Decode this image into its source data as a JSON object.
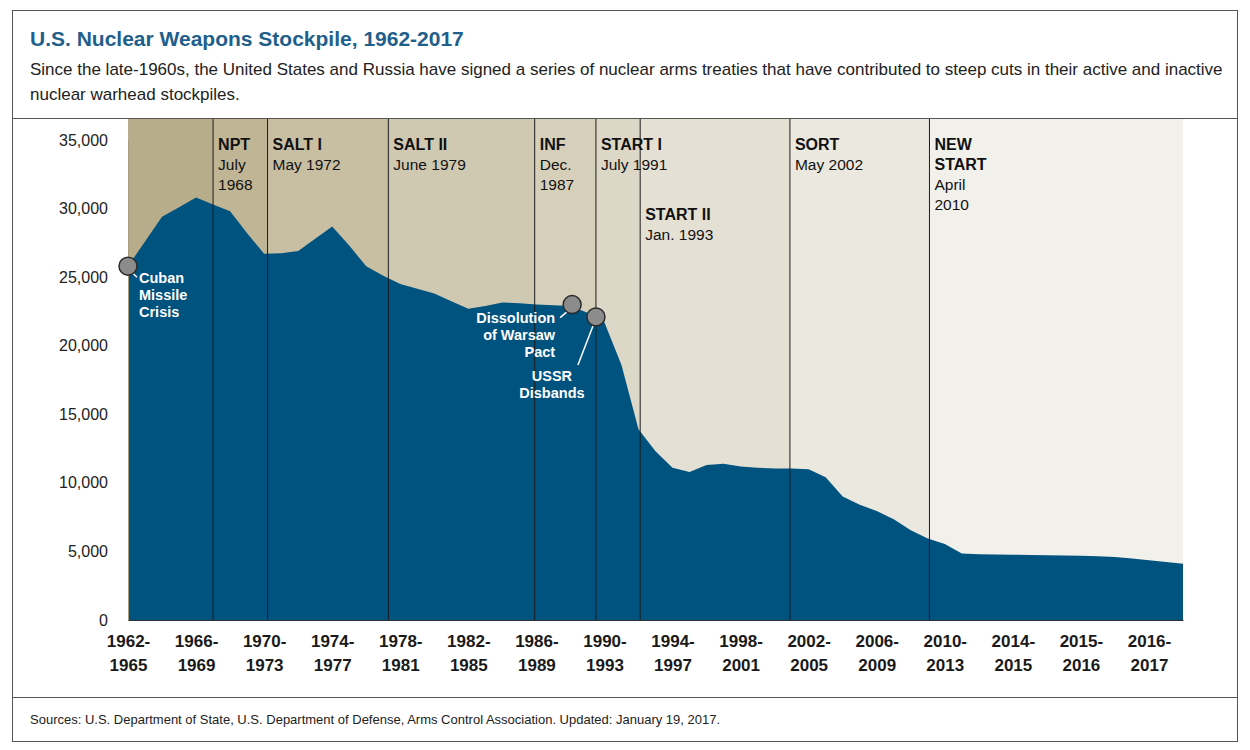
{
  "chart_data": {
    "type": "area",
    "title": "U.S. Nuclear Weapons Stockpile, 1962-2017",
    "subtitle": "Since the late-1960s, the United States and Russia have signed a series of nuclear arms treaties that have contributed to steep cuts in their active and inactive nuclear warhead stockpiles.",
    "categories": [
      "1962-\n1965",
      null,
      null,
      null,
      "1966-\n1969",
      null,
      null,
      null,
      "1970-\n1973",
      null,
      null,
      null,
      "1974-\n1977",
      null,
      null,
      null,
      "1978-\n1981",
      null,
      null,
      null,
      "1982-\n1985",
      null,
      null,
      null,
      "1986-\n1989",
      null,
      null,
      null,
      "1990-\n1993",
      null,
      null,
      null,
      "1994-\n1997",
      null,
      null,
      null,
      "1998-\n2001",
      null,
      null,
      null,
      "2002-\n2005",
      null,
      null,
      null,
      "2006-\n2009",
      null,
      null,
      null,
      "2010-\n2013",
      null,
      null,
      null,
      "2014-\n2015",
      null,
      null,
      null,
      "2015-\n2016",
      null,
      null,
      null,
      "2016-\n2017",
      null,
      null
    ],
    "values": [
      25800,
      27600,
      29400,
      30100,
      30800,
      30300,
      29800,
      28200,
      26700,
      26750,
      26900,
      27800,
      28700,
      27300,
      25800,
      25100,
      24500,
      24150,
      23800,
      23250,
      22700,
      22900,
      23150,
      23100,
      23000,
      22950,
      22900,
      22400,
      21700,
      18600,
      13900,
      12300,
      11100,
      10800,
      11300,
      11400,
      11200,
      11100,
      11050,
      11050,
      11000,
      10400,
      9000,
      8400,
      7950,
      7350,
      6550,
      5950,
      5550,
      4850,
      4800,
      4780,
      4760,
      4740,
      4720,
      4700,
      4680,
      4650,
      4600,
      4480,
      4360,
      4230,
      4100
    ],
    "color": "#00527f",
    "ylim": [
      0,
      35000
    ],
    "yticks": [
      0,
      {
        "value": 5000,
        "label": "5,000"
      },
      {
        "value": 10000,
        "label": "10,000"
      },
      {
        "value": 15000,
        "label": "15,000"
      },
      {
        "value": 20000,
        "label": "20,000"
      },
      {
        "value": 25000,
        "label": "25,000"
      },
      {
        "value": 30000,
        "label": "30,000"
      },
      {
        "value": 35000,
        "label": "35,000"
      }
    ],
    "grid": false,
    "annotations": [
      {
        "label": "NPT",
        "date": "July\n1968",
        "x": 5.0
      },
      {
        "label": "SALT I",
        "date": "May 1972",
        "x": 8.2
      },
      {
        "label": "SALT II",
        "date": "June 1979",
        "x": 15.3
      },
      {
        "label": "INF",
        "date": "Dec.\n1987",
        "x": 23.9
      },
      {
        "label": "START I",
        "date": "July 1991",
        "x": 27.5
      },
      {
        "label": "START II",
        "date": "Jan. 1993",
        "x": 30.1
      },
      {
        "label": "SORT",
        "date": "May 2002",
        "x": 38.9
      },
      {
        "label": "NEW\nSTART",
        "date": "April\n2010",
        "x": 47.1
      }
    ],
    "events": [
      {
        "label": "Cuban\nMissile\nCrisis",
        "x": 0,
        "value": 25800
      },
      {
        "label": "Dissolution\nof Warsaw\nPact",
        "x": 26.1,
        "value": 23000
      },
      {
        "label": "USSR\nDisbands",
        "x": 27.5,
        "value": 22100
      }
    ],
    "source": "Sources: U.S. Department of State, U.S. Department of Defense, Arms Control Association. Updated: January 19, 2017."
  }
}
